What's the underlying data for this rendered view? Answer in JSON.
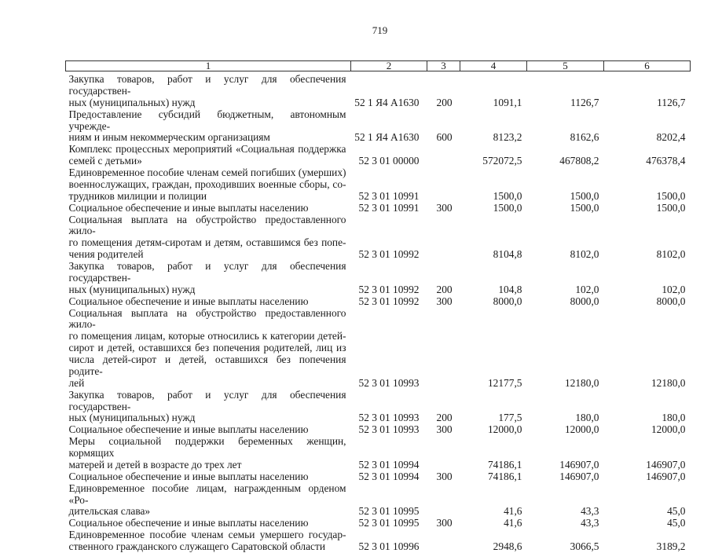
{
  "page_number": "719",
  "table": {
    "headers": [
      "1",
      "2",
      "3",
      "4",
      "5",
      "6"
    ],
    "rows": [
      {
        "lines": [
          "Закупка товаров, работ и услуг для обеспечения государствен-",
          "ных (муниципальных) нужд"
        ],
        "code": "52 1 Я4 A1630",
        "kind": "200",
        "v4": "1091,1",
        "v5": "1126,7",
        "v6": "1126,7"
      },
      {
        "lines": [
          "Предоставление субсидий бюджетным, автономным учрежде-",
          "ниям и иным некоммерческим организациям"
        ],
        "code": "52 1 Я4 A1630",
        "kind": "600",
        "v4": "8123,2",
        "v5": "8162,6",
        "v6": "8202,4"
      },
      {
        "lines": [
          "Комплекс процессных мероприятий «Социальная поддержка",
          "семей с детьми»"
        ],
        "code": "52 3 01 00000",
        "kind": "",
        "v4": "572072,5",
        "v5": "467808,2",
        "v6": "476378,4"
      },
      {
        "lines": [
          "Единовременное пособие членам семей погибших (умерших)",
          "военнослужащих, граждан, проходивших военные сборы, со-",
          "трудников милиции и полиции"
        ],
        "code": "52 3 01 10991",
        "kind": "",
        "v4": "1500,0",
        "v5": "1500,0",
        "v6": "1500,0"
      },
      {
        "lines": [
          "Социальное обеспечение и иные выплаты населению"
        ],
        "code": "52 3 01 10991",
        "kind": "300",
        "v4": "1500,0",
        "v5": "1500,0",
        "v6": "1500,0"
      },
      {
        "lines": [
          "Социальная выплата на обустройство предоставленного жило-",
          "го помещения детям-сиротам и детям, оставшимся без попе-",
          "чения родителей"
        ],
        "code": "52 3 01 10992",
        "kind": "",
        "v4": "8104,8",
        "v5": "8102,0",
        "v6": "8102,0"
      },
      {
        "lines": [
          "Закупка товаров, работ и услуг для обеспечения государствен-",
          "ных (муниципальных) нужд"
        ],
        "code": "52 3 01 10992",
        "kind": "200",
        "v4": "104,8",
        "v5": "102,0",
        "v6": "102,0"
      },
      {
        "lines": [
          "Социальное обеспечение и иные выплаты населению"
        ],
        "code": "52 3 01 10992",
        "kind": "300",
        "v4": "8000,0",
        "v5": "8000,0",
        "v6": "8000,0"
      },
      {
        "lines": [
          "Социальная выплата на обустройство предоставленного жило-",
          "го помещения лицам, которые относились к категории детей-",
          "сирот и детей, оставшихся без попечения родителей, лиц из",
          "числа детей-сирот и детей, оставшихся без попечения родите-",
          "лей"
        ],
        "code": "52 3 01 10993",
        "kind": "",
        "v4": "12177,5",
        "v5": "12180,0",
        "v6": "12180,0"
      },
      {
        "lines": [
          "Закупка товаров, работ и услуг для обеспечения государствен-",
          "ных (муниципальных) нужд"
        ],
        "code": "52 3 01 10993",
        "kind": "200",
        "v4": "177,5",
        "v5": "180,0",
        "v6": "180,0"
      },
      {
        "lines": [
          "Социальное обеспечение и иные выплаты населению"
        ],
        "code": "52 3 01 10993",
        "kind": "300",
        "v4": "12000,0",
        "v5": "12000,0",
        "v6": "12000,0"
      },
      {
        "lines": [
          "Меры социальной поддержки беременных женщин, кормящих",
          "матерей и детей в возрасте до трех лет"
        ],
        "code": "52 3 01 10994",
        "kind": "",
        "v4": "74186,1",
        "v5": "146907,0",
        "v6": "146907,0"
      },
      {
        "lines": [
          "Социальное обеспечение и иные выплаты населению"
        ],
        "code": "52 3 01 10994",
        "kind": "300",
        "v4": "74186,1",
        "v5": "146907,0",
        "v6": "146907,0"
      },
      {
        "lines": [
          "Единовременное пособие лицам, награжденным орденом «Ро-",
          "дительская слава»"
        ],
        "code": "52 3 01 10995",
        "kind": "",
        "v4": "41,6",
        "v5": "43,3",
        "v6": "45,0"
      },
      {
        "lines": [
          "Социальное обеспечение и иные выплаты населению"
        ],
        "code": "52 3 01 10995",
        "kind": "300",
        "v4": "41,6",
        "v5": "43,3",
        "v6": "45,0"
      },
      {
        "lines": [
          "Единовременное пособие членам семьи умершего государ-",
          "ственного гражданского служащего Саратовской области"
        ],
        "code": "52 3 01 10996",
        "kind": "",
        "v4": "2948,6",
        "v5": "3066,5",
        "v6": "3189,2"
      }
    ]
  }
}
